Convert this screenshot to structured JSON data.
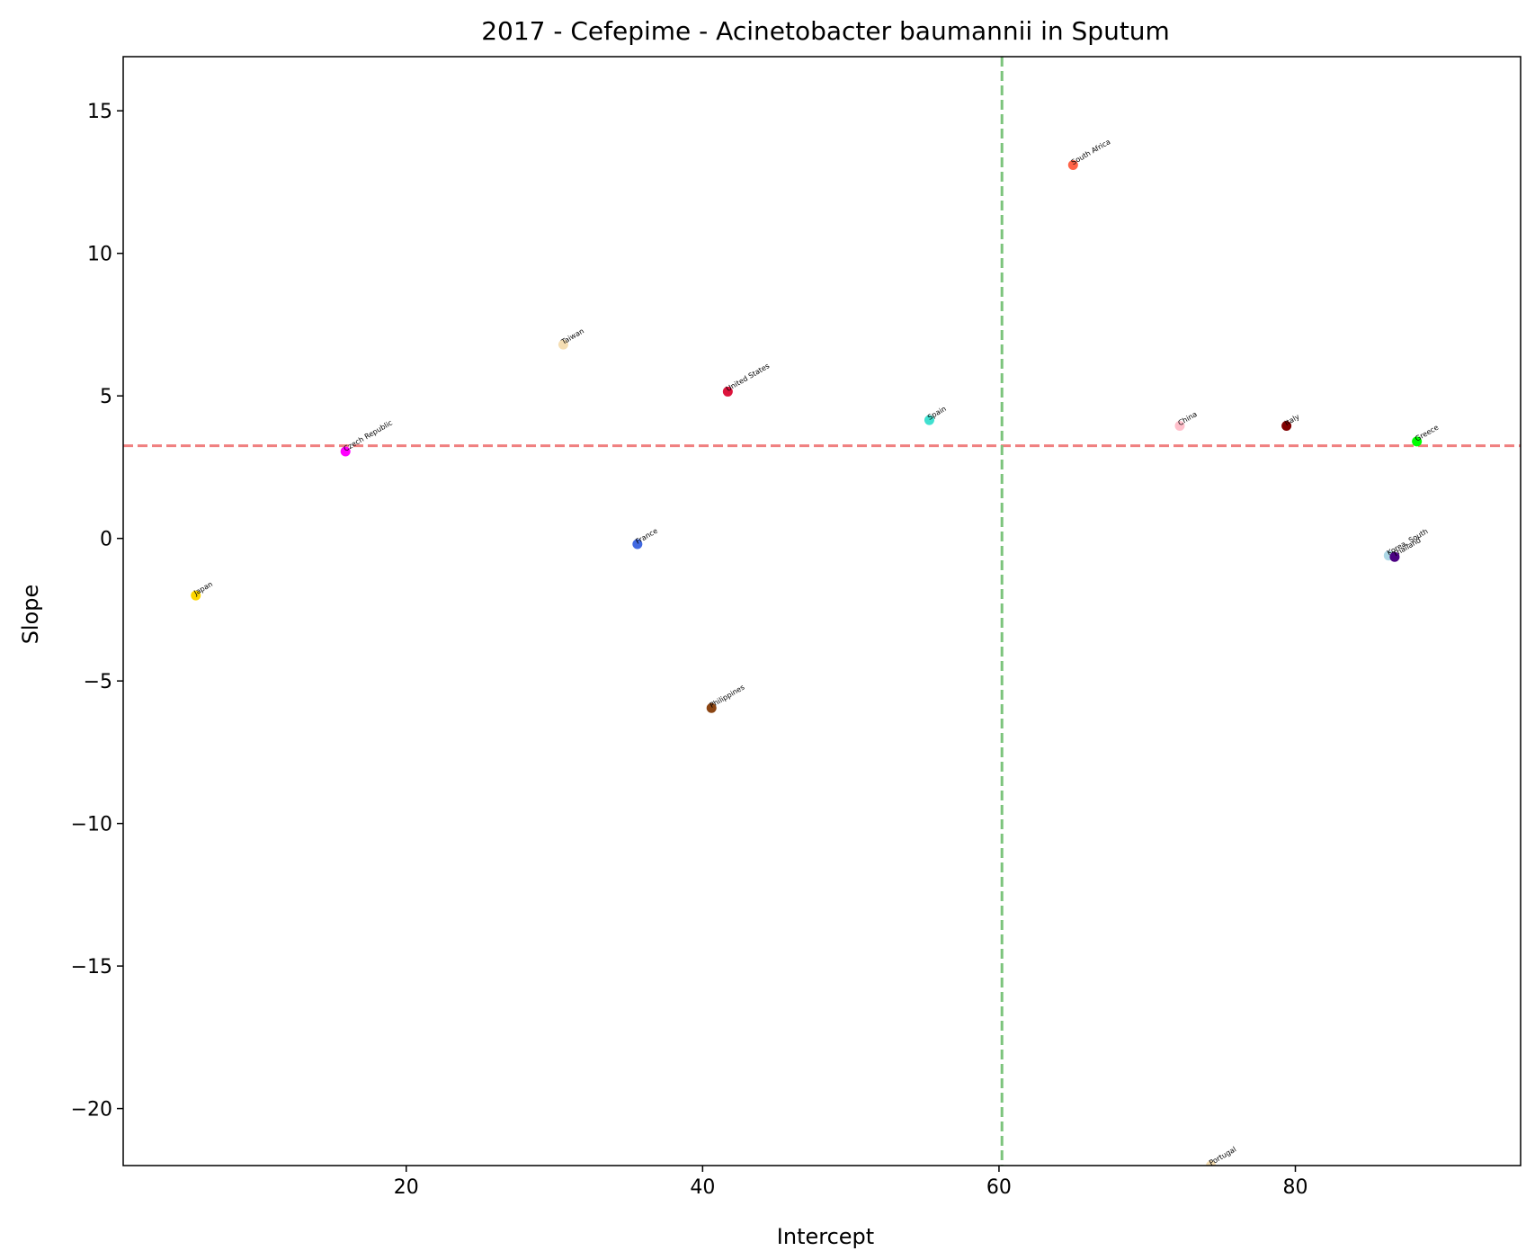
{
  "chart_data": {
    "type": "scatter",
    "title": "2017 - Cefepime - Acinetobacter baumannii in Sputum",
    "xlabel": "Intercept",
    "ylabel": "Slope",
    "xlim": [
      0.9,
      95.2
    ],
    "ylim": [
      -22.0,
      16.9
    ],
    "xticks": [
      20,
      40,
      60,
      80
    ],
    "yticks": [
      15,
      10,
      5,
      0,
      -5,
      -10,
      -15,
      -20
    ],
    "xtick_labels": [
      "20",
      "40",
      "60",
      "80"
    ],
    "ytick_labels": [
      "15",
      "10",
      "5",
      "0",
      "−5",
      "−10",
      "−15",
      "−20"
    ],
    "grid": false,
    "reference_lines": {
      "horizontal": {
        "y": 3.25,
        "color": "#f08080",
        "style": "dashed"
      },
      "vertical": {
        "x": 60.2,
        "color": "#7cc47c",
        "style": "dashed"
      }
    },
    "points": [
      {
        "label": "Japan",
        "x": 5.8,
        "y": -2.0,
        "color": "#ffd700"
      },
      {
        "label": "Czech Republic",
        "x": 15.9,
        "y": 3.05,
        "color": "#ff00ff"
      },
      {
        "label": "Taiwan",
        "x": 30.6,
        "y": 6.8,
        "color": "#f5deb3"
      },
      {
        "label": "France",
        "x": 35.6,
        "y": -0.2,
        "color": "#4169e1"
      },
      {
        "label": "Philippines",
        "x": 40.6,
        "y": -5.95,
        "color": "#8b4513"
      },
      {
        "label": "United States",
        "x": 41.7,
        "y": 5.15,
        "color": "#dc143c"
      },
      {
        "label": "Spain",
        "x": 55.3,
        "y": 4.15,
        "color": "#40e0d0"
      },
      {
        "label": "South Africa",
        "x": 65.0,
        "y": 13.1,
        "color": "#ff6347"
      },
      {
        "label": "China",
        "x": 72.2,
        "y": 3.95,
        "color": "#ffc0cb"
      },
      {
        "label": "Portugal",
        "x": 74.3,
        "y": -22.0,
        "color": "#f5deb3"
      },
      {
        "label": "Italy",
        "x": 79.4,
        "y": 3.95,
        "color": "#800000"
      },
      {
        "label": "Korea, South",
        "x": 86.3,
        "y": -0.6,
        "color": "#add8e6"
      },
      {
        "label": "Thailand",
        "x": 86.7,
        "y": -0.65,
        "color": "#4b0082"
      },
      {
        "label": "Greece",
        "x": 88.2,
        "y": 3.4,
        "color": "#00ff00"
      }
    ]
  }
}
